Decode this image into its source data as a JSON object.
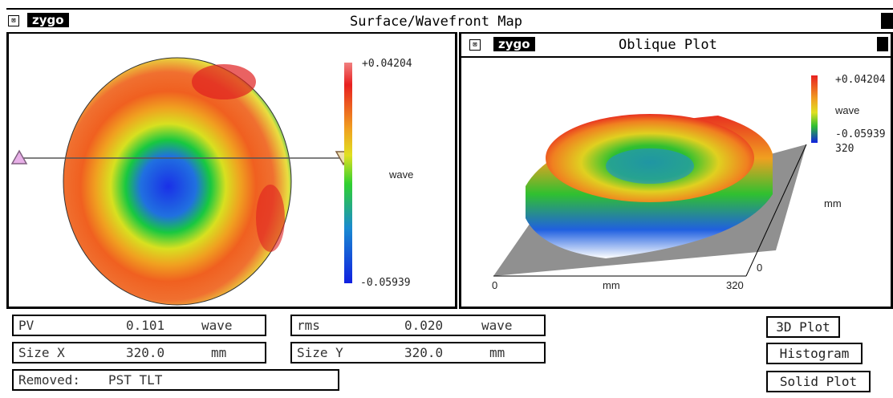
{
  "window": {
    "title": "Surface/Wavefront Map",
    "logo": "zygo"
  },
  "map_panel": {
    "colorbar": {
      "max": "+0.04204",
      "min": "-0.05939",
      "unit": "wave"
    }
  },
  "oblique_panel": {
    "logo": "zygo",
    "title": "Oblique Plot",
    "colorbar": {
      "max": "+0.04204",
      "min": "-0.05939",
      "unit": "wave",
      "extra": "320"
    },
    "axes": {
      "x_min": "0",
      "x_max": "320",
      "x_label": "mm",
      "y_label": "mm",
      "y_min": "0"
    }
  },
  "results": {
    "pv": {
      "label": "PV",
      "value": "0.101",
      "unit": "wave"
    },
    "rms": {
      "label": "rms",
      "value": "0.020",
      "unit": "wave"
    },
    "size_x": {
      "label": "Size X",
      "value": "320.0",
      "unit": "mm"
    },
    "size_y": {
      "label": "Size Y",
      "value": "320.0",
      "unit": "mm"
    },
    "removed": {
      "label": "Removed:",
      "value": "PST TLT"
    }
  },
  "buttons": {
    "plot3d": "3D Plot",
    "histogram": "Histogram",
    "solid": "Solid Plot"
  },
  "colors": {
    "red": "#e83020",
    "orange": "#f08a1e",
    "yellow": "#e8e020",
    "green": "#30c030",
    "blue": "#1830e0",
    "background": "#ffffff"
  }
}
